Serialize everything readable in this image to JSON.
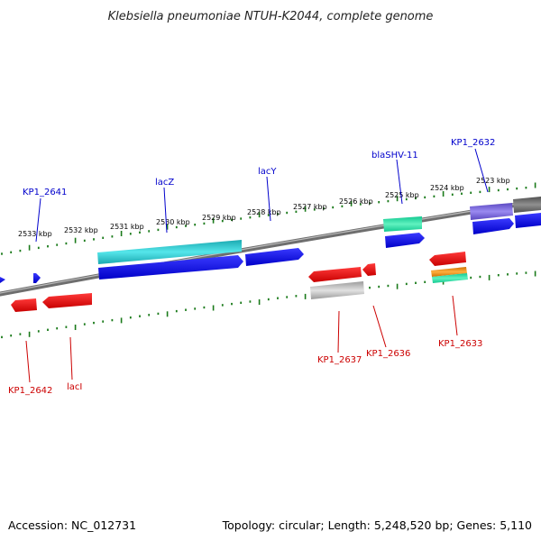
{
  "title": "Klebsiella pneumoniae NTUH-K2044, complete genome",
  "footer": {
    "accession": "Accession: NC_012731",
    "topology": "Topology: circular; Length: 5,248,520 bp; Genes: 5,110"
  },
  "colors": {
    "backbone": "#7a7a7a",
    "ticks": "#1a7a1a",
    "forward_gene": "#0000ee",
    "reverse_gene": "#ee0000",
    "lacZ": "#22c6cc",
    "blaSHV": "#22e0a0",
    "kp2632": "#6a5acd",
    "grey_gene": "#b0b0b0",
    "orange_gene": "#f08a00",
    "forward_label": "#0000cc",
    "reverse_label": "#cc0000"
  },
  "scale_labels": [
    "2533 kbp",
    "2532 kbp",
    "2531 kbp",
    "2530 kbp",
    "2529 kbp",
    "2528 kbp",
    "2527 kbp",
    "2526 kbp",
    "2525 kbp",
    "2524 kbp",
    "2523 kbp"
  ],
  "forward_labels": [
    "KP1_2641",
    "lacZ",
    "lacY",
    "blaSHV-11",
    "KP1_2632"
  ],
  "reverse_labels": [
    "KP1_2642",
    "lacI",
    "KP1_2637",
    "KP1_2636",
    "KP1_2633"
  ]
}
